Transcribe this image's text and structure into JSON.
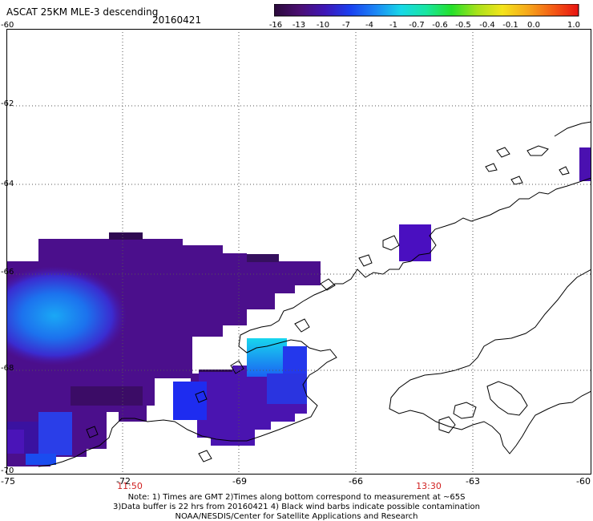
{
  "title": "ASCAT 25KM MLE-3 descending",
  "date": "20160421",
  "colorbar": {
    "labels": [
      "-16",
      "-13",
      "-10",
      "-7",
      "-4",
      "-1",
      "-0.7",
      "-0.6",
      "-0.5",
      "-0.4",
      "-0.1",
      "0.0",
      "1.0"
    ],
    "colors": [
      "#2a0a3a",
      "#4b0f72",
      "#3e16b6",
      "#1a40f0",
      "#1c86f5",
      "#17d8e8",
      "#18e6a0",
      "#24e02a",
      "#a8e21a",
      "#f4e41a",
      "#f6a81a",
      "#f45a14",
      "#e81212"
    ]
  },
  "map": {
    "lat_labels": [
      "-60",
      "-62",
      "-64",
      "-66",
      "-68",
      "-70"
    ],
    "lon_labels": [
      "-75",
      "-72",
      "-69",
      "-66",
      "-63",
      "-60"
    ],
    "time_labels": [
      "11:50",
      "13:30"
    ]
  },
  "notes": {
    "line1": "Note: 1) Times are GMT 2)Times along bottom correspond to measurement at ~65S",
    "line2": "3)Data buffer is 22 hrs from 20160421 4) Black wind barbs indicate possible contamination",
    "line3": "NOAA/NESDIS/Center for Satellite Applications and Research"
  }
}
